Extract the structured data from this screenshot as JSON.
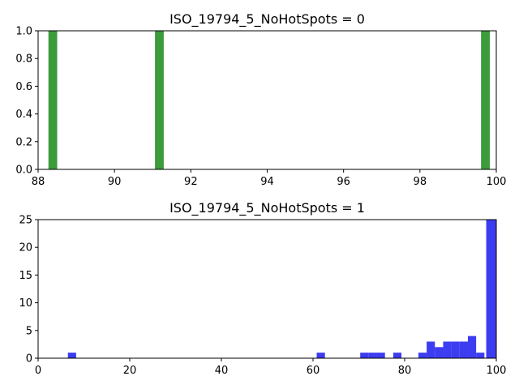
{
  "chart_data": [
    {
      "type": "bar",
      "title": "ISO_19794_5_NoHotSpots = 0",
      "xlabel": "",
      "ylabel": "",
      "xlim": [
        88,
        100
      ],
      "ylim": [
        0,
        1.0
      ],
      "xticks": [
        88,
        90,
        92,
        94,
        96,
        98,
        100
      ],
      "xtick_labels": [
        "88",
        "90",
        "92",
        "94",
        "96",
        "98",
        "100"
      ],
      "yticks": [
        0.0,
        0.2,
        0.4,
        0.6,
        0.8,
        1.0
      ],
      "ytick_labels": [
        "0.0",
        "0.2",
        "0.4",
        "0.6",
        "0.8",
        "1.0"
      ],
      "color": "#3c9c3c",
      "bins": [
        {
          "x0": 88.27,
          "x1": 88.5,
          "value": 1
        },
        {
          "x0": 91.06,
          "x1": 91.29,
          "value": 1
        },
        {
          "x0": 99.6,
          "x1": 99.83,
          "value": 1
        }
      ]
    },
    {
      "type": "bar",
      "title": "ISO_19794_5_NoHotSpots = 1",
      "xlabel": "",
      "ylabel": "",
      "xlim": [
        0,
        100
      ],
      "ylim": [
        0,
        25
      ],
      "xticks": [
        0,
        20,
        40,
        60,
        80,
        100
      ],
      "xtick_labels": [
        "0",
        "20",
        "40",
        "60",
        "80",
        "100"
      ],
      "yticks": [
        0,
        5,
        10,
        15,
        20,
        25
      ],
      "ytick_labels": [
        "0",
        "5",
        "10",
        "15",
        "20",
        "25"
      ],
      "color": "#3c3cf0",
      "bins": [
        {
          "x0": 6.5,
          "x1": 8.3,
          "value": 1
        },
        {
          "x0": 60.8,
          "x1": 62.6,
          "value": 1
        },
        {
          "x0": 70.3,
          "x1": 72.1,
          "value": 1
        },
        {
          "x0": 72.1,
          "x1": 73.9,
          "value": 1
        },
        {
          "x0": 73.9,
          "x1": 75.7,
          "value": 1
        },
        {
          "x0": 77.5,
          "x1": 79.3,
          "value": 1
        },
        {
          "x0": 83.0,
          "x1": 84.8,
          "value": 1
        },
        {
          "x0": 84.8,
          "x1": 86.6,
          "value": 3
        },
        {
          "x0": 86.6,
          "x1": 88.4,
          "value": 2
        },
        {
          "x0": 88.4,
          "x1": 90.2,
          "value": 3
        },
        {
          "x0": 90.2,
          "x1": 92.0,
          "value": 3
        },
        {
          "x0": 92.0,
          "x1": 93.8,
          "value": 3
        },
        {
          "x0": 93.8,
          "x1": 95.6,
          "value": 4
        },
        {
          "x0": 95.6,
          "x1": 97.4,
          "value": 1
        },
        {
          "x0": 97.8,
          "x1": 99.9,
          "value": 25
        }
      ]
    }
  ]
}
